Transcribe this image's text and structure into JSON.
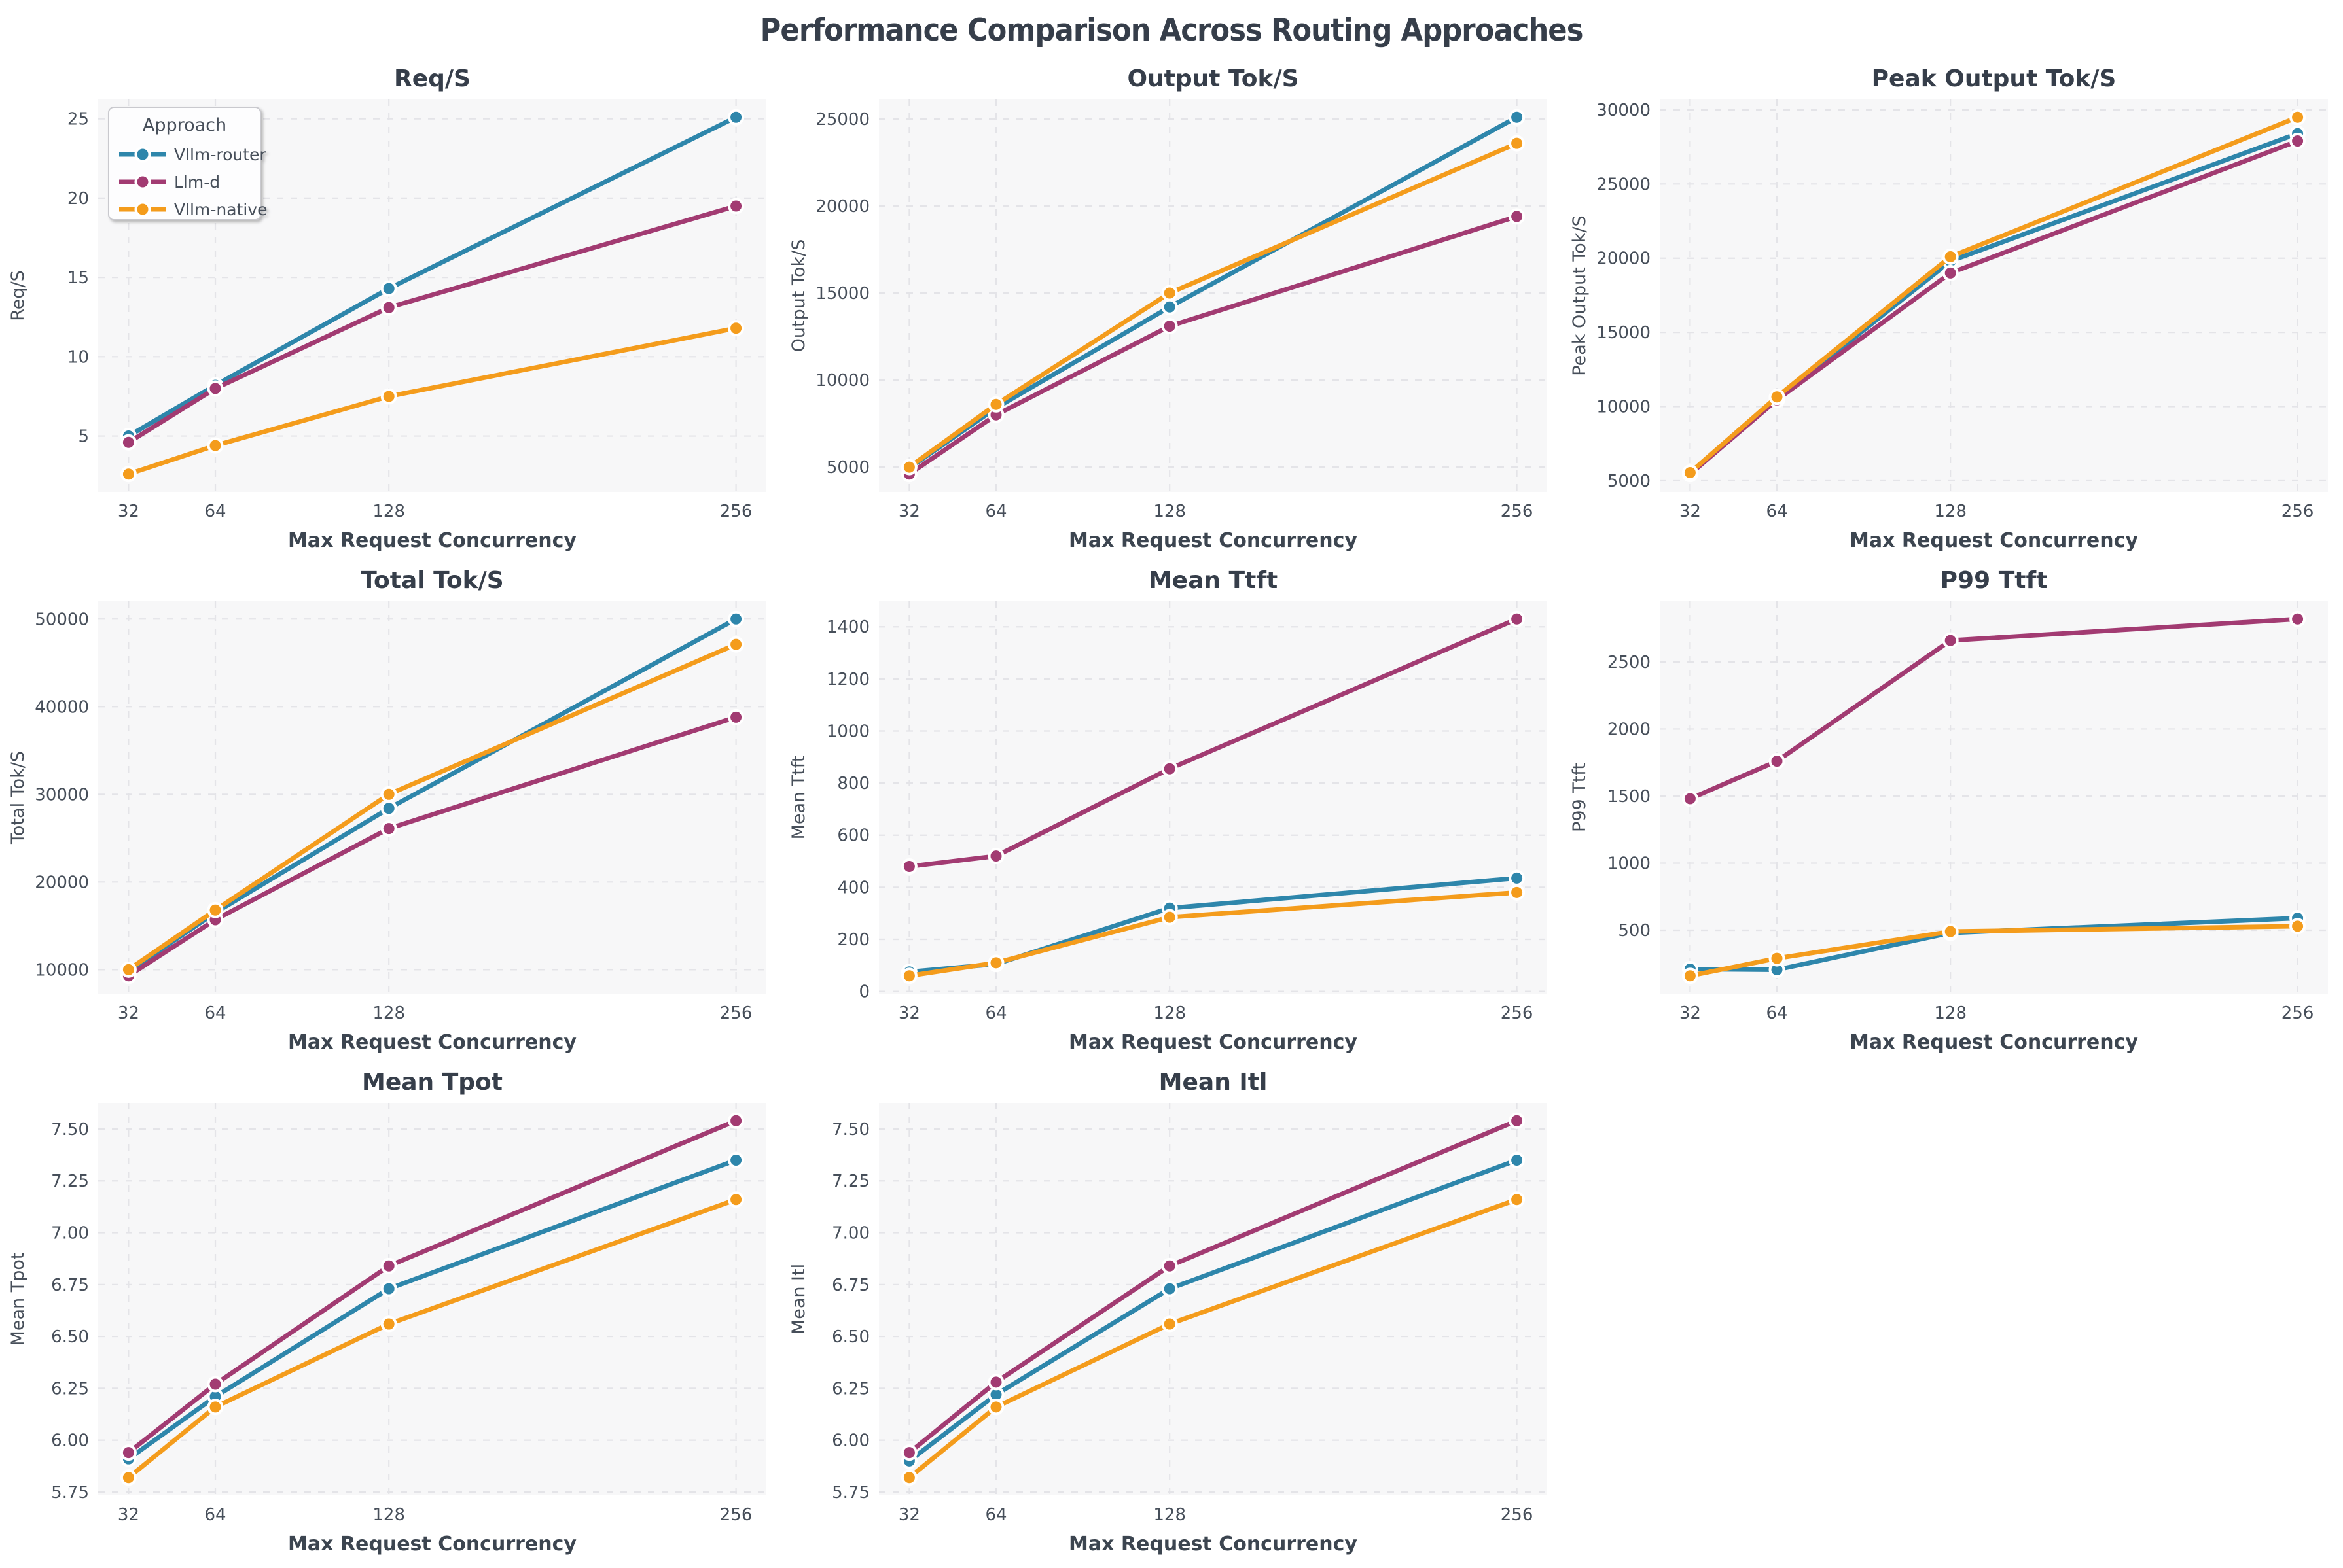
{
  "header": {
    "title": "Performance Comparison Across Routing Approaches"
  },
  "xlabel": "Max Request Concurrency",
  "x": [
    32,
    64,
    128,
    256
  ],
  "legend": {
    "title": "Approach"
  },
  "approaches": [
    {
      "name": "Vllm-router",
      "color": "#2E86AB"
    },
    {
      "name": "Llm-d",
      "color": "#A23B72"
    },
    {
      "name": "Vllm-native",
      "color": "#F49C1C"
    }
  ],
  "style": {
    "plot_bg": "#f7f7f8",
    "grid_color": "#e4e4e8",
    "title_color": "#363e4a",
    "tick_color": "#474f5a",
    "label_color": "#3c4550",
    "marker_edge": "#ffffff",
    "legend_bg": "#fdfdfe",
    "legend_border": "#c9c9ce"
  },
  "chart_data": [
    {
      "id": "req-s",
      "type": "line",
      "title": "Req/S",
      "ylabel": "Req/S",
      "xlabel": "Max Request Concurrency",
      "x": [
        32,
        64,
        128,
        256
      ],
      "yticks": [
        5,
        10,
        15,
        20,
        25
      ],
      "ydec": 0,
      "legend": true,
      "series": [
        {
          "name": "Vllm-router",
          "values": [
            5.0,
            8.2,
            14.3,
            25.1
          ]
        },
        {
          "name": "Llm-d",
          "values": [
            4.6,
            8.0,
            13.1,
            19.5
          ]
        },
        {
          "name": "Vllm-native",
          "values": [
            2.6,
            4.4,
            7.5,
            11.8
          ]
        }
      ]
    },
    {
      "id": "output-tok-s",
      "type": "line",
      "title": "Output Tok/S",
      "ylabel": "Output Tok/S",
      "xlabel": "Max Request Concurrency",
      "x": [
        32,
        64,
        128,
        256
      ],
      "yticks": [
        5000,
        10000,
        15000,
        20000,
        25000
      ],
      "ydec": 0,
      "legend": false,
      "series": [
        {
          "name": "Vllm-router",
          "values": [
            4950,
            8400,
            14200,
            25100
          ]
        },
        {
          "name": "Llm-d",
          "values": [
            4600,
            8000,
            13100,
            19400
          ]
        },
        {
          "name": "Vllm-native",
          "values": [
            5000,
            8600,
            15000,
            23600
          ]
        }
      ]
    },
    {
      "id": "peak-output-tok-s",
      "type": "line",
      "title": "Peak Output Tok/S",
      "ylabel": "Peak Output Tok/S",
      "xlabel": "Max Request Concurrency",
      "x": [
        32,
        64,
        128,
        256
      ],
      "yticks": [
        5000,
        10000,
        15000,
        20000,
        25000,
        30000
      ],
      "ydec": 0,
      "legend": false,
      "series": [
        {
          "name": "Vllm-router",
          "values": [
            5480,
            10500,
            19800,
            28400
          ]
        },
        {
          "name": "Llm-d",
          "values": [
            5450,
            10450,
            19000,
            27900
          ]
        },
        {
          "name": "Vllm-native",
          "values": [
            5550,
            10650,
            20100,
            29500
          ]
        }
      ]
    },
    {
      "id": "total-tok-s",
      "type": "line",
      "title": "Total Tok/S",
      "ylabel": "Total Tok/S",
      "xlabel": "Max Request Concurrency",
      "x": [
        32,
        64,
        128,
        256
      ],
      "yticks": [
        10000,
        20000,
        30000,
        40000,
        50000
      ],
      "ydec": 0,
      "legend": false,
      "series": [
        {
          "name": "Vllm-router",
          "values": [
            9800,
            16500,
            28400,
            50000
          ]
        },
        {
          "name": "Llm-d",
          "values": [
            9300,
            15700,
            26100,
            38800
          ]
        },
        {
          "name": "Vllm-native",
          "values": [
            10000,
            16800,
            30000,
            47100
          ]
        }
      ]
    },
    {
      "id": "mean-ttft",
      "type": "line",
      "title": "Mean Ttft",
      "ylabel": "Mean Ttft",
      "xlabel": "Max Request Concurrency",
      "x": [
        32,
        64,
        128,
        256
      ],
      "yticks": [
        0,
        200,
        400,
        600,
        800,
        1000,
        1200,
        1400
      ],
      "ydec": 0,
      "legend": false,
      "series": [
        {
          "name": "Vllm-router",
          "values": [
            75,
            105,
            320,
            435
          ]
        },
        {
          "name": "Llm-d",
          "values": [
            480,
            520,
            855,
            1430
          ]
        },
        {
          "name": "Vllm-native",
          "values": [
            60,
            110,
            285,
            380
          ]
        }
      ]
    },
    {
      "id": "p99-ttft",
      "type": "line",
      "title": "P99 Ttft",
      "ylabel": "P99 Ttft",
      "xlabel": "Max Request Concurrency",
      "x": [
        32,
        64,
        128,
        256
      ],
      "yticks": [
        500,
        1000,
        1500,
        2000,
        2500
      ],
      "ydec": 0,
      "legend": false,
      "series": [
        {
          "name": "Vllm-router",
          "values": [
            210,
            205,
            480,
            590
          ]
        },
        {
          "name": "Llm-d",
          "values": [
            1480,
            1760,
            2660,
            2820
          ]
        },
        {
          "name": "Vllm-native",
          "values": [
            160,
            290,
            490,
            530
          ]
        }
      ]
    },
    {
      "id": "mean-tpot",
      "type": "line",
      "title": "Mean Tpot",
      "ylabel": "Mean Tpot",
      "xlabel": "Max Request Concurrency",
      "x": [
        32,
        64,
        128,
        256
      ],
      "yticks": [
        5.75,
        6.0,
        6.25,
        6.5,
        6.75,
        7.0,
        7.25,
        7.5
      ],
      "ydec": 2,
      "legend": false,
      "series": [
        {
          "name": "Vllm-router",
          "values": [
            5.91,
            6.21,
            6.73,
            7.35
          ]
        },
        {
          "name": "Llm-d",
          "values": [
            5.94,
            6.27,
            6.84,
            7.54
          ]
        },
        {
          "name": "Vllm-native",
          "values": [
            5.82,
            6.16,
            6.56,
            7.16
          ]
        }
      ]
    },
    {
      "id": "mean-itl",
      "type": "line",
      "title": "Mean Itl",
      "ylabel": "Mean Itl",
      "xlabel": "Max Request Concurrency",
      "x": [
        32,
        64,
        128,
        256
      ],
      "yticks": [
        5.75,
        6.0,
        6.25,
        6.5,
        6.75,
        7.0,
        7.25,
        7.5
      ],
      "ydec": 2,
      "legend": false,
      "series": [
        {
          "name": "Vllm-router",
          "values": [
            5.9,
            6.22,
            6.73,
            7.35
          ]
        },
        {
          "name": "Llm-d",
          "values": [
            5.94,
            6.28,
            6.84,
            7.54
          ]
        },
        {
          "name": "Vllm-native",
          "values": [
            5.82,
            6.16,
            6.56,
            7.16
          ]
        }
      ]
    }
  ]
}
